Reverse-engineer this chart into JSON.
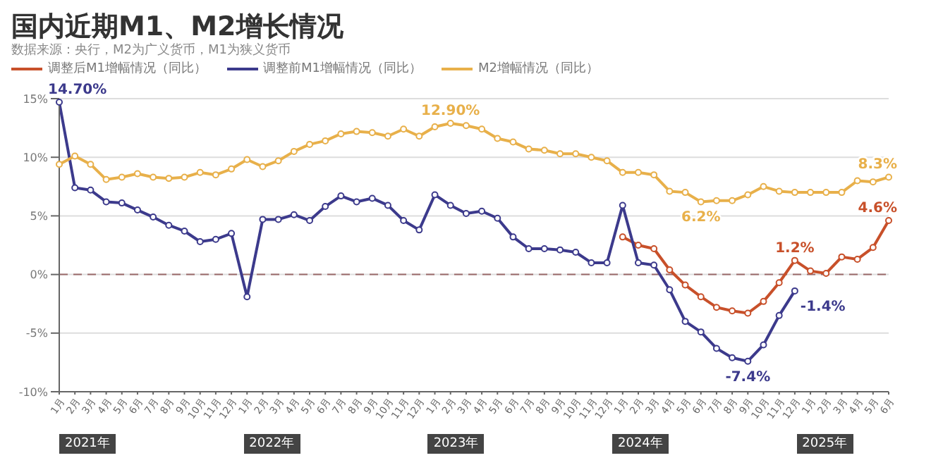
{
  "chart_data": {
    "type": "line",
    "title": "国内近期M1、M2增长情况",
    "subtitle": "数据来源：央行，M2为广义货币，M1为狭义货币",
    "categories": [
      "1月",
      "2月",
      "3月",
      "4月",
      "5月",
      "6月",
      "7月",
      "8月",
      "9月",
      "10月",
      "11月",
      "12月",
      "1月",
      "2月",
      "3月",
      "4月",
      "5月",
      "6月",
      "7月",
      "8月",
      "9月",
      "10月",
      "11月",
      "12月",
      "1月",
      "2月",
      "3月",
      "4月",
      "5月",
      "6月",
      "7月",
      "8月",
      "9月",
      "10月",
      "11月",
      "12月",
      "1月",
      "2月",
      "3月",
      "4月",
      "5月",
      "6月",
      "7月",
      "8月",
      "9月",
      "10月",
      "11月",
      "12月",
      "1月",
      "2月",
      "3月",
      "4月",
      "5月",
      "6月"
    ],
    "series": [
      {
        "name": "调整后M1增幅情况（同比）",
        "color": "#c8502a",
        "values": [
          null,
          null,
          null,
          null,
          null,
          null,
          null,
          null,
          null,
          null,
          null,
          null,
          null,
          null,
          null,
          null,
          null,
          null,
          null,
          null,
          null,
          null,
          null,
          null,
          null,
          null,
          null,
          null,
          null,
          null,
          null,
          null,
          null,
          null,
          null,
          null,
          3.2,
          2.5,
          2.2,
          0.4,
          -0.9,
          -1.9,
          -2.8,
          -3.1,
          -3.3,
          -2.3,
          -0.7,
          1.2,
          0.3,
          0.1,
          1.5,
          1.3,
          2.3,
          4.6
        ],
        "value_labels": [
          null,
          null,
          null,
          null,
          null,
          null,
          null,
          null,
          null,
          null,
          null,
          null,
          null,
          null,
          null,
          null,
          null,
          null,
          null,
          null,
          null,
          null,
          null,
          null,
          null,
          null,
          null,
          null,
          null,
          null,
          null,
          null,
          null,
          null,
          null,
          null,
          null,
          null,
          null,
          null,
          null,
          null,
          null,
          null,
          null,
          null,
          null,
          "1.2%",
          null,
          null,
          null,
          null,
          null,
          "4.6%"
        ]
      },
      {
        "name": "调整前M1增幅情况（同比）",
        "color": "#3c3a8c",
        "values": [
          14.7,
          7.4,
          7.2,
          6.2,
          6.1,
          5.5,
          4.9,
          4.2,
          3.7,
          2.8,
          3.0,
          3.5,
          -1.9,
          4.7,
          4.7,
          5.1,
          4.6,
          5.8,
          6.7,
          6.2,
          6.5,
          5.9,
          4.6,
          3.8,
          6.8,
          5.9,
          5.2,
          5.4,
          4.8,
          3.2,
          2.2,
          2.2,
          2.1,
          1.9,
          1.0,
          1.0,
          5.9,
          1.0,
          0.8,
          -1.3,
          -4.0,
          -4.9,
          -6.3,
          -7.1,
          -7.4,
          -6.0,
          -3.5,
          -1.4,
          null,
          null,
          null,
          null,
          null,
          null
        ],
        "value_labels": [
          "14.70%",
          null,
          null,
          null,
          null,
          null,
          null,
          null,
          null,
          null,
          null,
          null,
          null,
          null,
          null,
          null,
          null,
          null,
          null,
          null,
          null,
          null,
          null,
          null,
          null,
          null,
          null,
          null,
          null,
          null,
          null,
          null,
          null,
          null,
          null,
          null,
          null,
          null,
          null,
          null,
          null,
          null,
          null,
          null,
          "-7.4%",
          null,
          null,
          "-1.4%",
          null,
          null,
          null,
          null,
          null,
          null
        ]
      },
      {
        "name": "M2增幅情况（同比）",
        "color": "#e8b04a",
        "values": [
          9.4,
          10.1,
          9.4,
          8.1,
          8.3,
          8.6,
          8.3,
          8.2,
          8.3,
          8.7,
          8.5,
          9.0,
          9.8,
          9.2,
          9.7,
          10.5,
          11.1,
          11.4,
          12.0,
          12.2,
          12.1,
          11.8,
          12.4,
          11.8,
          12.6,
          12.9,
          12.7,
          12.4,
          11.6,
          11.3,
          10.7,
          10.6,
          10.3,
          10.3,
          10.0,
          9.7,
          8.7,
          8.7,
          8.5,
          7.1,
          7.0,
          6.2,
          6.3,
          6.3,
          6.8,
          7.5,
          7.1,
          7.0,
          7.0,
          7.0,
          7.0,
          8.0,
          7.9,
          8.3
        ],
        "value_labels": [
          null,
          null,
          null,
          null,
          null,
          null,
          null,
          null,
          null,
          null,
          null,
          null,
          null,
          null,
          null,
          null,
          null,
          null,
          null,
          null,
          null,
          null,
          null,
          null,
          null,
          "12.90%",
          null,
          null,
          null,
          null,
          null,
          null,
          null,
          null,
          null,
          null,
          null,
          null,
          null,
          null,
          null,
          "6.2%",
          null,
          null,
          null,
          null,
          null,
          null,
          null,
          null,
          null,
          null,
          null,
          "8.3%"
        ]
      }
    ],
    "ylim": [
      -10,
      15
    ],
    "yticks": [
      {
        "value": -10,
        "label": "-10%"
      },
      {
        "value": -5,
        "label": "-5%"
      },
      {
        "value": 0,
        "label": "0%"
      },
      {
        "value": 5,
        "label": "5%"
      },
      {
        "value": 10,
        "label": "10%"
      },
      {
        "value": 15,
        "label": "15%"
      }
    ],
    "ref_lines": [
      {
        "axis": "y",
        "value": 0,
        "line_style": "dashed",
        "color": "#9a6a6a"
      }
    ],
    "annotations": [
      "2021年",
      "2022年",
      "2023年",
      "2024年",
      "2025年"
    ],
    "grid": "y",
    "legend": "top left",
    "marker": "circle",
    "line_style": "solid"
  }
}
